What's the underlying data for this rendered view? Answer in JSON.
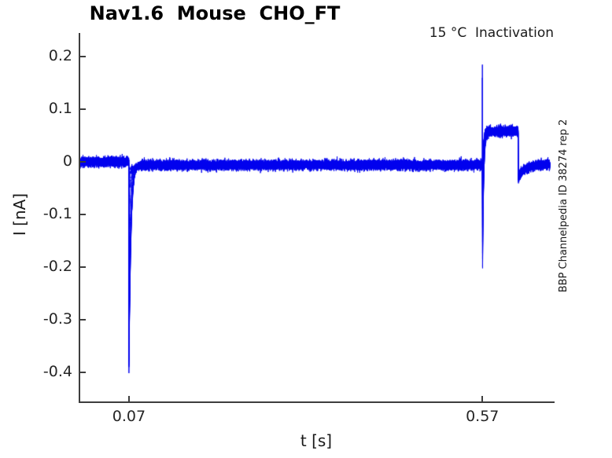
{
  "figure": {
    "title": "Nav1.6  Mouse  CHO_FT",
    "annotation": "15 °C  Inactivation",
    "side_label": "BBP Channelpedia ID 38274 rep 2"
  },
  "chart_data": {
    "type": "line",
    "title": "Nav1.6  Mouse  CHO_FT",
    "subtitle": "15 °C  Inactivation",
    "side_label": "BBP Channelpedia ID 38274 rep 2",
    "xlabel": "t [s]",
    "ylabel": "I [nA]",
    "xlim": [
      0,
      0.671
    ],
    "ylim": [
      -0.456,
      0.2437
    ],
    "xticks": [
      {
        "value": 0.07,
        "label": "0.07"
      },
      {
        "value": 0.57,
        "label": "0.57"
      }
    ],
    "yticks": [
      {
        "value": 0.2,
        "label": "0.2"
      },
      {
        "value": 0.1,
        "label": "0.1"
      },
      {
        "value": 0,
        "label": "0"
      },
      {
        "value": -0.1,
        "label": "-0.1"
      },
      {
        "value": -0.2,
        "label": "-0.2"
      },
      {
        "value": -0.3,
        "label": "-0.3"
      },
      {
        "value": -0.4,
        "label": "-0.4"
      }
    ],
    "grid": false,
    "legend": null,
    "line_color": "#0000ee",
    "axis_color": "#3d3d3d",
    "n_sweeps": 12,
    "noise_sd_nA": 0.0035,
    "sweep_offset_spread_nA": 0.004,
    "sample_dt_s": 0.00025,
    "trace_model": {
      "start_s": 0.0005,
      "end_s": 0.6655,
      "baseline_nA": 0,
      "holding_after_cond_nA": -0.006,
      "cond_onset_s": 0.07,
      "cond_decay_tau_s": 0.0028,
      "cond_peaks_nA": [
        -0.005,
        -0.02,
        -0.06,
        -0.12,
        -0.2,
        -0.27,
        -0.33,
        -0.36,
        -0.375,
        -0.385,
        -0.39,
        -0.395
      ],
      "test_onset_s": 0.57,
      "test_decay_tau_s": 0.0016,
      "test_peaks_nA": [
        -0.24,
        -0.235,
        -0.225,
        -0.21,
        -0.185,
        -0.155,
        -0.12,
        -0.085,
        -0.055,
        -0.03,
        -0.012,
        -0.004
      ],
      "artifact_peaks_nA": [
        0.185,
        0.16
      ],
      "plateau_nA": 0.058,
      "test_end_s": 0.6205,
      "tail_step_nA": -0.026,
      "tail_tau_s": 0.01,
      "after_tail_nA": -0.005
    }
  }
}
